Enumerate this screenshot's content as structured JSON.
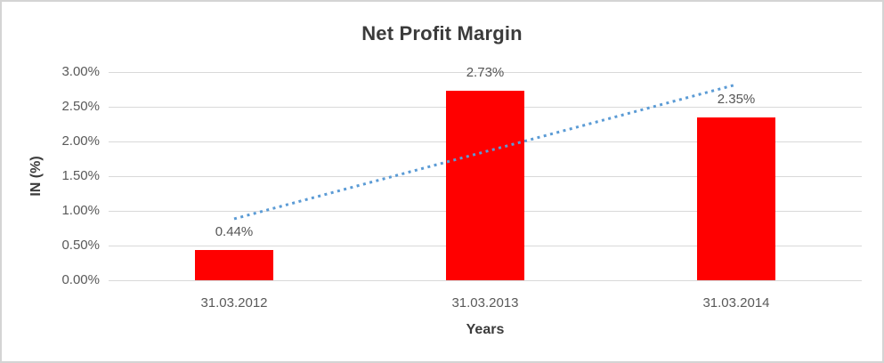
{
  "chart_data": {
    "type": "bar",
    "title": "Net Profit Margin",
    "xlabel": "Years",
    "ylabel": "IN (%)",
    "categories": [
      "31.03.2012",
      "31.03.2013",
      "31.03.2014"
    ],
    "values": [
      0.44,
      2.73,
      2.35
    ],
    "data_labels": [
      "0.44%",
      "2.73%",
      "2.35%"
    ],
    "yticks": [
      {
        "value": 0.0,
        "label": "0.00%"
      },
      {
        "value": 0.5,
        "label": "0.50%"
      },
      {
        "value": 1.0,
        "label": "1.00%"
      },
      {
        "value": 1.5,
        "label": "1.50%"
      },
      {
        "value": 2.0,
        "label": "2.00%"
      },
      {
        "value": 2.5,
        "label": "2.50%"
      },
      {
        "value": 3.0,
        "label": "3.00%"
      }
    ],
    "ylim": [
      0,
      3
    ],
    "grid": true,
    "legend": "none",
    "bar_color": "#ff0000",
    "gridline_color": "#d9d9d9",
    "trendline": {
      "type": "linear",
      "style": "dotted",
      "color": "#5b9bd5",
      "start_category_index": 0,
      "start_value": 0.885,
      "end_category_index": 2,
      "end_value": 2.82
    }
  }
}
